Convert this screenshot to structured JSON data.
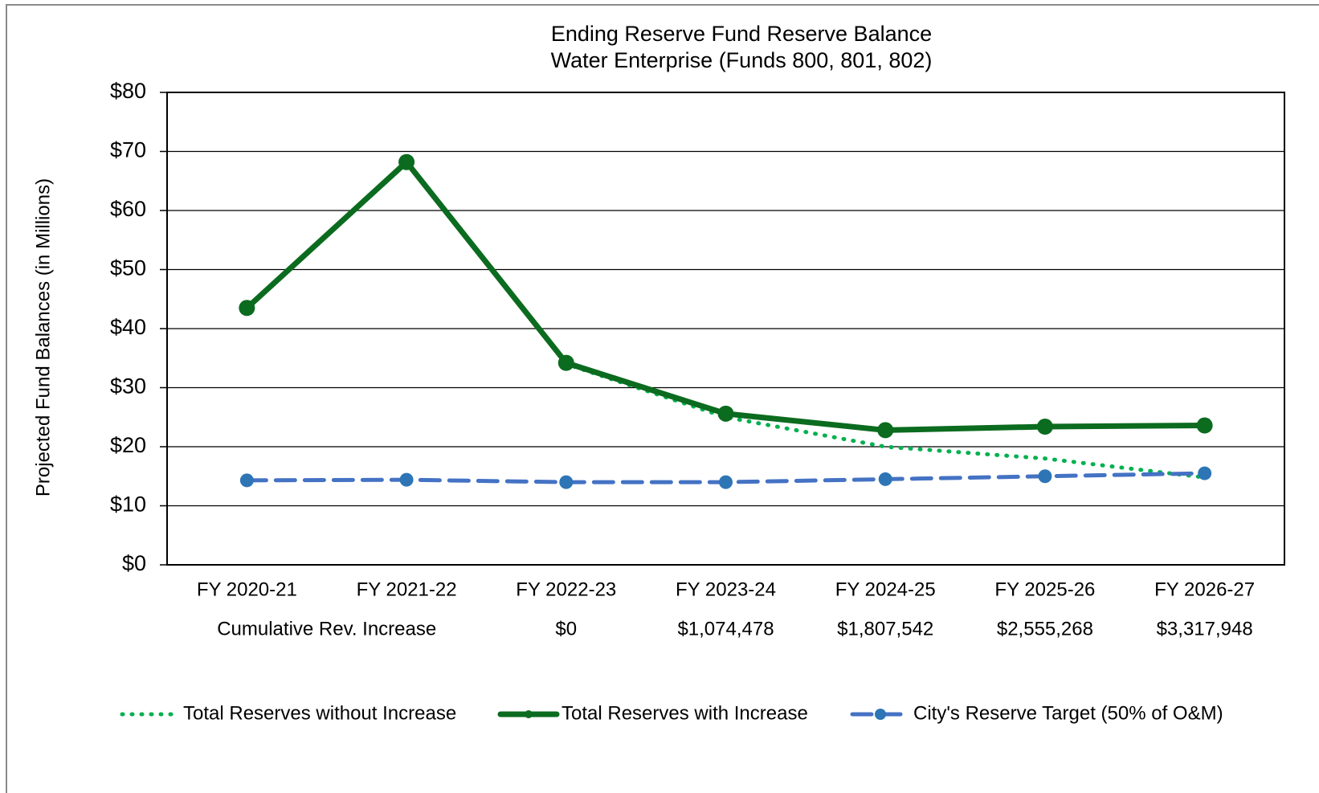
{
  "chart_data": {
    "type": "line",
    "title": [
      "Ending  Reserve Fund  Reserve Balance",
      "Water Enterprise (Funds  800, 801, 802)"
    ],
    "y_label": "Projected Fund Balances (in Millions)",
    "categories": [
      "FY 2020-21",
      "FY 2021-22",
      "FY 2022-23",
      "FY 2023-24",
      "FY 2024-25",
      "FY 2025-26",
      "FY 2026-27"
    ],
    "row_title": "Cumulative Rev. Increase",
    "row_labels": [
      null,
      null,
      "$0",
      "$1,074,478",
      "$1,807,542",
      "$2,555,268",
      "$3,317,948"
    ],
    "ylim": [
      0,
      80
    ],
    "yticks": [
      {
        "value": 0,
        "label": "$0"
      },
      {
        "value": 10,
        "label": "$10"
      },
      {
        "value": 20,
        "label": "$20"
      },
      {
        "value": 30,
        "label": "$30"
      },
      {
        "value": 40,
        "label": "$40"
      },
      {
        "value": 50,
        "label": "$50"
      },
      {
        "value": 60,
        "label": "$60"
      },
      {
        "value": 70,
        "label": "$70"
      },
      {
        "value": 80,
        "label": "$80"
      }
    ],
    "grid": true,
    "legend": "bottom",
    "series": [
      {
        "name": "Total Reserves without Increase",
        "color": "#00b050",
        "style": "dotted",
        "markers": false,
        "values": [
          43.5,
          68.2,
          34.0,
          25.0,
          20.0,
          18.0,
          14.8
        ]
      },
      {
        "name": "Total Reserves with Increase",
        "color": "#0b6b1f",
        "style": "solid",
        "markers": true,
        "values": [
          43.5,
          68.2,
          34.2,
          25.6,
          22.8,
          23.4,
          23.6
        ]
      },
      {
        "name": "City's Reserve Target (50% of O&M)",
        "color": "#4472c4",
        "style": "dashed",
        "markers": true,
        "values": [
          14.3,
          14.4,
          14.0,
          14.0,
          14.5,
          15.0,
          15.5
        ]
      }
    ]
  }
}
